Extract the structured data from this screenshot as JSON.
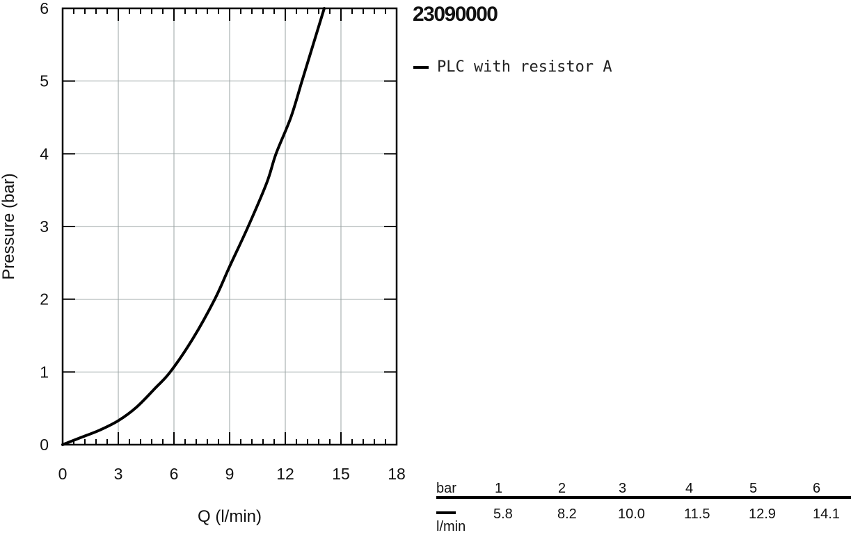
{
  "header": {
    "product_code": "23090000"
  },
  "legend": {
    "items": [
      {
        "label": "PLC with resistor A",
        "color": "#000000"
      }
    ]
  },
  "chart_data": {
    "type": "line",
    "title": "23090000",
    "xlabel": "Q (l/min)",
    "ylabel": "Pressure (bar)",
    "xlim": [
      0,
      18
    ],
    "ylim": [
      0,
      6
    ],
    "x_ticks": [
      0,
      3,
      6,
      9,
      12,
      15,
      18
    ],
    "y_ticks": [
      0,
      1,
      2,
      3,
      4,
      5,
      6
    ],
    "x_minor_step": 0.6,
    "y_minor_step": 1,
    "grid": true,
    "legend_position": "right",
    "series": [
      {
        "name": "PLC with resistor A",
        "color": "#000000",
        "x": [
          0,
          1,
          2,
          3,
          4,
          5,
          5.8,
          7,
          8.2,
          9,
          10.0,
          11,
          11.5,
          12.3,
          12.9,
          13.5,
          14.1
        ],
        "y": [
          0,
          0.1,
          0.2,
          0.33,
          0.52,
          0.78,
          1,
          1.45,
          2,
          2.45,
          3,
          3.6,
          4,
          4.5,
          5,
          5.5,
          6
        ]
      }
    ]
  },
  "flow_table": {
    "row_unit_top": "bar",
    "row_unit_bottom": "l/min",
    "pressures": [
      "1",
      "2",
      "3",
      "4",
      "5",
      "6"
    ],
    "flows": [
      "5.8",
      "8.2",
      "10.0",
      "11.5",
      "12.9",
      "14.1"
    ]
  }
}
